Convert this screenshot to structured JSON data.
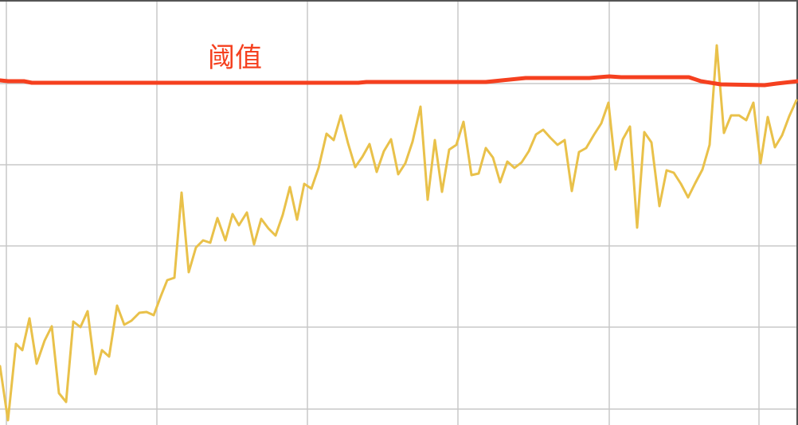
{
  "chart_data": {
    "type": "line",
    "annotation": "阈值",
    "annotation_color": "#f5401f",
    "xlim": [
      0,
      1002
    ],
    "ylim": [
      0,
      534
    ],
    "xticks": [
      8,
      197,
      386,
      575,
      765,
      953
    ],
    "yticks": [
      20,
      123,
      225,
      327,
      429
    ],
    "grid": true,
    "series": [
      {
        "color": "#e9c14a",
        "width": 3,
        "x": [
          0,
          10,
          20,
          28,
          37,
          46,
          56,
          65,
          74,
          83,
          92,
          101,
          110,
          120,
          128,
          137,
          147,
          156,
          165,
          175,
          184,
          193,
          202,
          210,
          219,
          228,
          237,
          246,
          255,
          264,
          273,
          283,
          292,
          300,
          310,
          319,
          328,
          337,
          346,
          355,
          364,
          373,
          382,
          391,
          400,
          410,
          419,
          428,
          437,
          446,
          455,
          464,
          473,
          482,
          491,
          500,
          509,
          518,
          528,
          537,
          546,
          555,
          564,
          573,
          582,
          592,
          601,
          610,
          619,
          628,
          637,
          646,
          655,
          664,
          673,
          682,
          691,
          700,
          709,
          718,
          727,
          736,
          746,
          755,
          764,
          773,
          782,
          791,
          800,
          809,
          818,
          828,
          837,
          846,
          855,
          864,
          873,
          882,
          891,
          900,
          909,
          918,
          928,
          937,
          946,
          955,
          964,
          973,
          982,
          991,
          1000
        ],
        "values": [
          74,
          6,
          102,
          94,
          134,
          77,
          106,
          124,
          40,
          29,
          130,
          123,
          143,
          64,
          94,
          86,
          150,
          126,
          131,
          141,
          142,
          138,
          162,
          182,
          185,
          292,
          192,
          223,
          232,
          229,
          260,
          232,
          265,
          251,
          267,
          227,
          259,
          247,
          238,
          264,
          299,
          258,
          303,
          297,
          323,
          366,
          358,
          389,
          354,
          324,
          337,
          353,
          318,
          344,
          359,
          315,
          329,
          356,
          400,
          283,
          358,
          293,
          346,
          352,
          381,
          314,
          316,
          348,
          336,
          305,
          331,
          323,
          330,
          344,
          365,
          371,
          361,
          352,
          358,
          294,
          343,
          348,
          365,
          379,
          405,
          321,
          359,
          375,
          248,
          368,
          355,
          275,
          320,
          317,
          303,
          286,
          304,
          321,
          352,
          477,
          367,
          389,
          389,
          383,
          405,
          329,
          387,
          349,
          364,
          388,
          408
        ]
      },
      {
        "color": "#f5401f",
        "width": 5,
        "x": [
          0,
          10,
          30,
          40,
          450,
          460,
          610,
          630,
          660,
          740,
          765,
          780,
          865,
          880,
          905,
          960,
          975,
          1002
        ],
        "values": [
          433,
          432,
          432,
          430,
          430,
          431,
          431,
          433,
          436,
          436,
          438,
          437,
          437,
          432,
          428,
          427,
          429,
          432
        ]
      }
    ]
  }
}
